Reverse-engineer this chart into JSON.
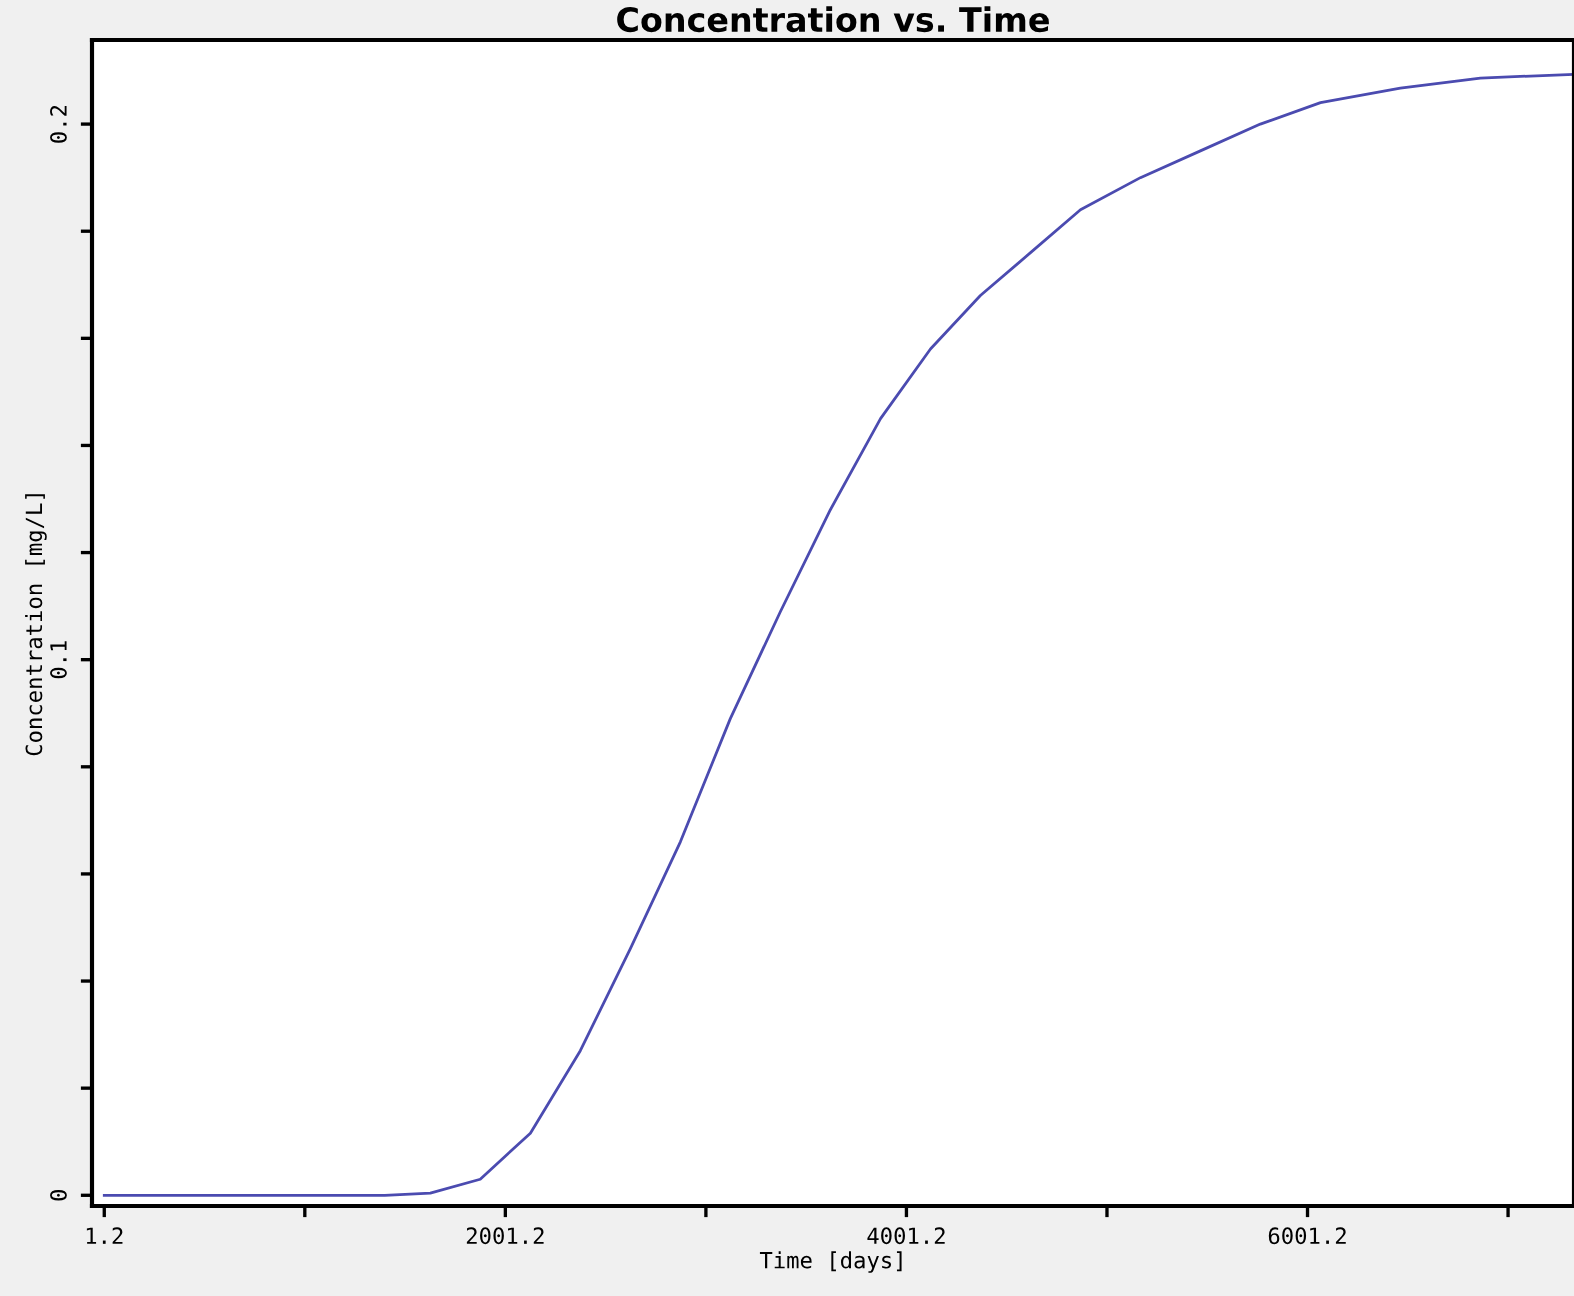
{
  "chart_data": {
    "type": "line",
    "title": "Concentration vs. Time",
    "xlabel": "Time [days]",
    "ylabel": "Concentration [mg/L]",
    "x": [
      1.2,
      500,
      1000,
      1400,
      1627,
      1876,
      2126,
      2375,
      2624,
      2874,
      3123,
      3373,
      3622,
      3872,
      4121,
      4370,
      4620,
      4869,
      5168,
      5467,
      5766,
      6066,
      6464,
      6863,
      7330
    ],
    "series": [
      {
        "color": "#4b4bb0",
        "values": [
          0,
          0,
          0,
          0,
          0.0004,
          0.003,
          0.0116,
          0.027,
          0.046,
          0.066,
          0.089,
          0.109,
          0.128,
          0.145,
          0.158,
          0.168,
          0.176,
          0.184,
          0.19,
          0.195,
          0.2,
          0.204,
          0.2067,
          0.2086,
          0.2093
        ]
      }
    ],
    "xlim": [
      -60,
      7330
    ],
    "ylim": [
      -0.002,
      0.2157
    ],
    "xticks": [
      1.2,
      {
        "value": 1001.2,
        "label": null
      },
      2001.2,
      {
        "value": 3001.2,
        "label": null
      },
      4001.2,
      {
        "value": 5001.2,
        "label": null
      },
      6001.2,
      {
        "value": 7001.2,
        "label": null
      }
    ],
    "yticks": [
      0,
      {
        "value": 0.02,
        "label": null
      },
      {
        "value": 0.04,
        "label": null
      },
      {
        "value": 0.06,
        "label": null
      },
      {
        "value": 0.08,
        "label": null
      },
      0.1,
      {
        "value": 0.12,
        "label": null
      },
      {
        "value": 0.14,
        "label": null
      },
      {
        "value": 0.16,
        "label": null
      },
      {
        "value": 0.18,
        "label": null
      },
      0.2
    ],
    "marker": "none",
    "line_style": "solid"
  }
}
